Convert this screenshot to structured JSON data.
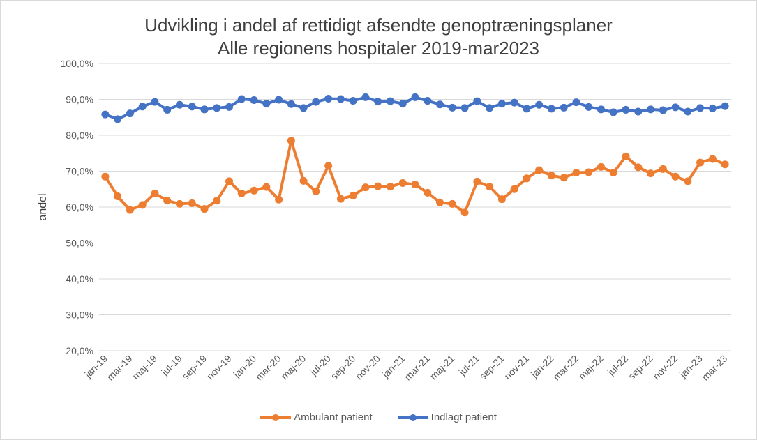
{
  "chart_data": {
    "type": "line",
    "title_line1": "Udvikling i andel af rettidigt afsendte genoptræningsplaner",
    "title_line2": "Alle regionens hospitaler 2019-mar2023",
    "ylabel": "andel",
    "xlabel": "",
    "ylim": [
      20,
      100
    ],
    "y_ticks": [
      "20,0%",
      "30,0%",
      "40,0%",
      "50,0%",
      "60,0%",
      "70,0%",
      "80,0%",
      "90,0%",
      "100,0%"
    ],
    "grid": true,
    "legend_position": "bottom",
    "x": [
      "jan-19",
      "feb-19",
      "mar-19",
      "apr-19",
      "maj-19",
      "jun-19",
      "jul-19",
      "aug-19",
      "sep-19",
      "okt-19",
      "nov-19",
      "dec-19",
      "jan-20",
      "feb-20",
      "mar-20",
      "apr-20",
      "maj-20",
      "jun-20",
      "jul-20",
      "aug-20",
      "sep-20",
      "okt-20",
      "nov-20",
      "dec-20",
      "jan-21",
      "feb-21",
      "mar-21",
      "apr-21",
      "maj-21",
      "jun-21",
      "jul-21",
      "aug-21",
      "sep-21",
      "okt-21",
      "nov-21",
      "dec-21",
      "jan-22",
      "feb-22",
      "mar-22",
      "apr-22",
      "maj-22",
      "jun-22",
      "jul-22",
      "aug-22",
      "sep-22",
      "okt-22",
      "nov-22",
      "dec-22",
      "jan-23",
      "feb-23",
      "mar-23"
    ],
    "x_tick_labels_shown": [
      "jan-19",
      "mar-19",
      "maj-19",
      "jul-19",
      "sep-19",
      "nov-19",
      "jan-20",
      "mar-20",
      "maj-20",
      "jul-20",
      "sep-20",
      "nov-20",
      "jan-21",
      "mar-21",
      "maj-21",
      "jul-21",
      "sep-21",
      "nov-21",
      "jan-22",
      "mar-22",
      "maj-22",
      "jul-22",
      "sep-22",
      "nov-22",
      "jan-23",
      "mar-23"
    ],
    "series": [
      {
        "name": "Ambulant patient",
        "color": "#ed7d31",
        "values": [
          68.5,
          63.0,
          59.2,
          60.6,
          63.8,
          61.8,
          60.9,
          61.1,
          59.5,
          61.8,
          67.2,
          63.8,
          64.6,
          65.6,
          62.1,
          78.5,
          67.3,
          64.4,
          71.5,
          62.3,
          63.2,
          65.5,
          65.8,
          65.7,
          66.7,
          66.3,
          64.0,
          61.3,
          60.9,
          58.5,
          67.1,
          65.7,
          62.2,
          65.0,
          68.0,
          70.3,
          68.8,
          68.2,
          69.6,
          69.7,
          71.2,
          69.6,
          74.1,
          71.1,
          69.4,
          70.6,
          68.5,
          67.2,
          72.4,
          73.4,
          71.9
        ]
      },
      {
        "name": "Indlagt patient",
        "color": "#4472c4",
        "values": [
          85.8,
          84.5,
          86.1,
          88.0,
          89.3,
          87.1,
          88.5,
          88.0,
          87.2,
          87.6,
          87.9,
          90.1,
          89.8,
          88.8,
          89.9,
          88.7,
          87.6,
          89.3,
          90.2,
          90.1,
          89.6,
          90.6,
          89.4,
          89.5,
          88.8,
          90.6,
          89.6,
          88.6,
          87.7,
          87.6,
          89.5,
          87.6,
          88.8,
          89.1,
          87.4,
          88.5,
          87.4,
          87.7,
          89.2,
          87.9,
          87.2,
          86.4,
          87.1,
          86.6,
          87.2,
          87.0,
          87.8,
          86.6,
          87.6,
          87.5,
          88.1
        ]
      }
    ]
  }
}
